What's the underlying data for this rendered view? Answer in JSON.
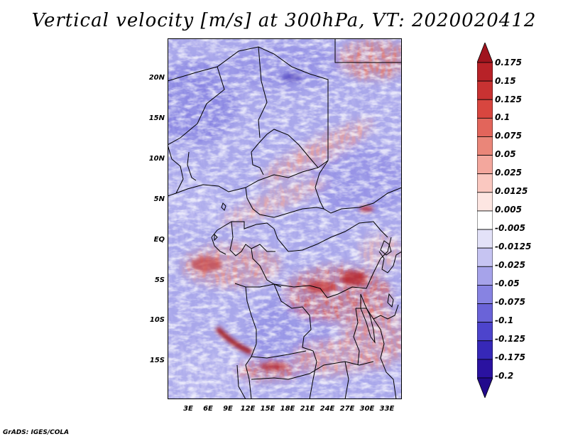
{
  "title": "Vertical velocity [m/s] at 300hPa, VT: 2020020412",
  "footer": "GrADS: IGES/COLA",
  "map": {
    "variable": "Vertical velocity",
    "units": "m/s",
    "level": "300hPa",
    "valid_time": "2020020412",
    "lat_labels": [
      "20N",
      "15N",
      "10N",
      "5N",
      "EQ",
      "5S",
      "10S",
      "15S"
    ],
    "lon_labels": [
      "3E",
      "6E",
      "9E",
      "12E",
      "15E",
      "18E",
      "21E",
      "24E",
      "27E",
      "30E",
      "33E"
    ]
  },
  "colorbar": {
    "labels": [
      "0.175",
      "0.15",
      "0.125",
      "0.1",
      "0.075",
      "0.05",
      "0.025",
      "0.0125",
      "0.005",
      "-0.005",
      "-0.0125",
      "-0.025",
      "-0.05",
      "-0.075",
      "-0.1",
      "-0.125",
      "-0.175",
      "-0.2"
    ],
    "colors": [
      "#a0141e",
      "#b82228",
      "#c83232",
      "#d8463f",
      "#e2655b",
      "#ea8679",
      "#f3a79d",
      "#fac8c0",
      "#fde6e2",
      "#ffffff",
      "#e3e2f8",
      "#c6c4f2",
      "#a6a3ea",
      "#8783e2",
      "#6a63d8",
      "#4d44cc",
      "#3628b8",
      "#2a12a0",
      "#220a8c"
    ]
  }
}
